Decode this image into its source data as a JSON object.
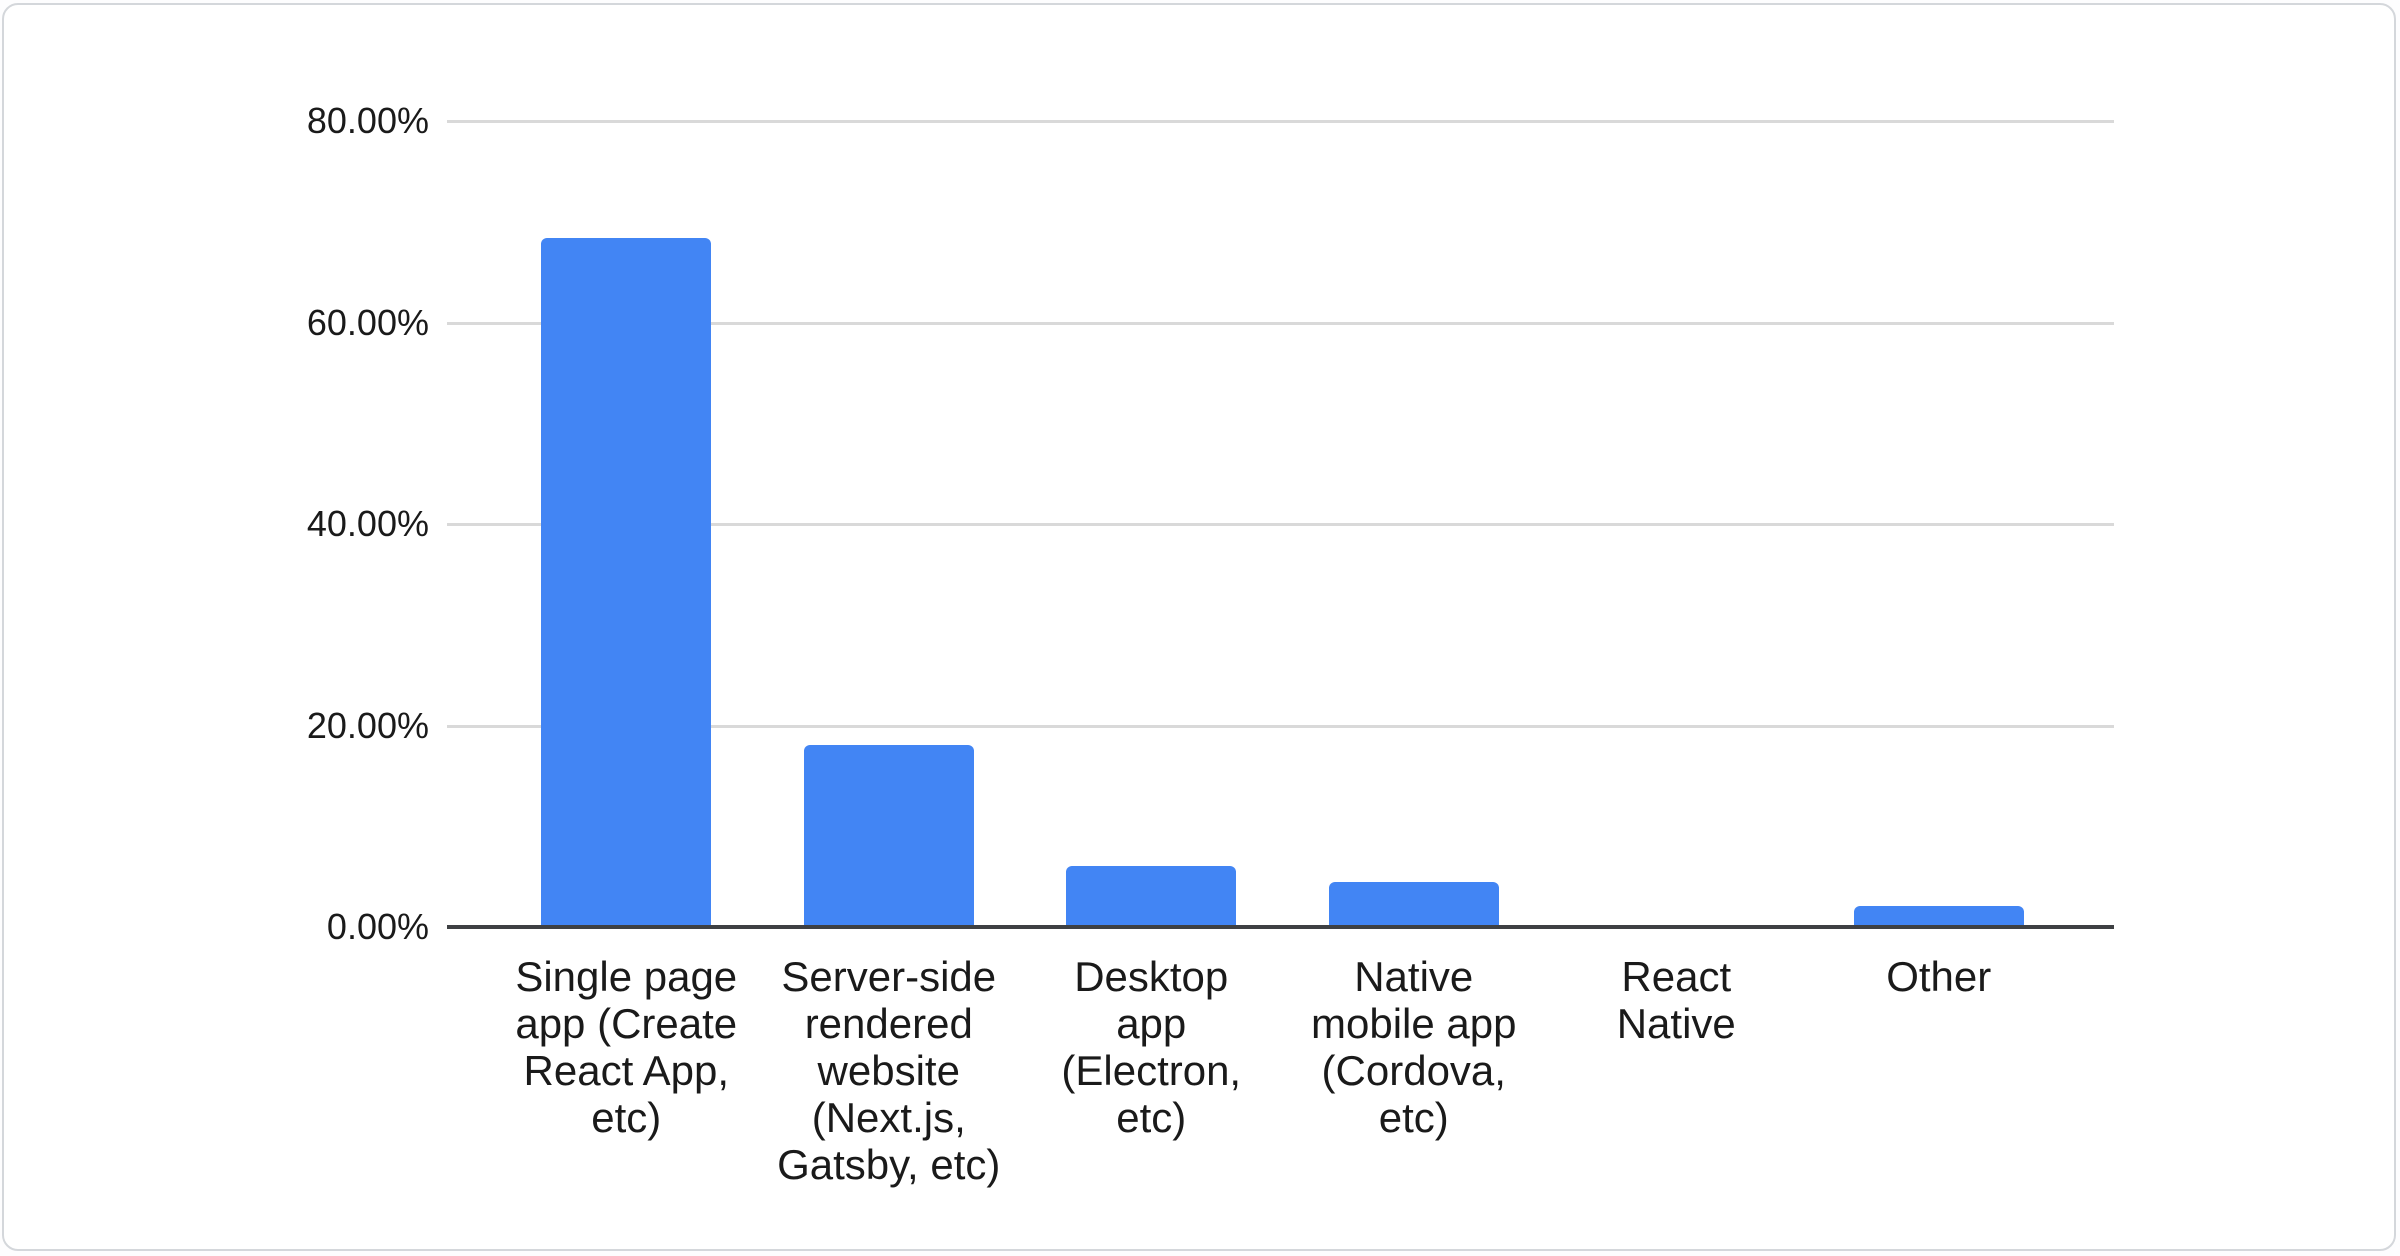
{
  "chart_data": {
    "type": "bar",
    "title": "",
    "legend": "none",
    "grid": true,
    "unit": "%",
    "categories": [
      "Single page app (Create React App, etc)",
      "Server-side rendered website (Next.js, Gatsby, etc)",
      "Desktop app (Electron, etc)",
      "Native mobile app (Cordova, etc)",
      "React Native",
      "Other"
    ],
    "categories_wrapped": [
      "Single page\napp (Create\nReact App,\netc)",
      "Server-side\nrendered\nwebsite\n(Next.js,\nGatsby, etc)",
      "Desktop\napp\n(Electron,\netc)",
      "Native\nmobile app\n(Cordova,\netc)",
      "React\nNative",
      "Other"
    ],
    "values": [
      68.4,
      18.1,
      6.1,
      4.5,
      0,
      2.1
    ],
    "y_ticks": [
      {
        "value": 80,
        "label": "80.00%"
      },
      {
        "value": 60,
        "label": "60.00%"
      },
      {
        "value": 40,
        "label": "40.00%"
      },
      {
        "value": 20,
        "label": "20.00%"
      },
      {
        "value": 0,
        "label": "0.00%"
      }
    ],
    "ylim": [
      0,
      80
    ],
    "xlabel": "",
    "ylabel": "",
    "colors": {
      "bar": "#4285f4",
      "gridline": "#d9d9d9",
      "baseline": "#3e4043",
      "label_text": "#1a1a1a",
      "card_bg": "#ffffff",
      "card_border": "#d4d7db"
    }
  }
}
